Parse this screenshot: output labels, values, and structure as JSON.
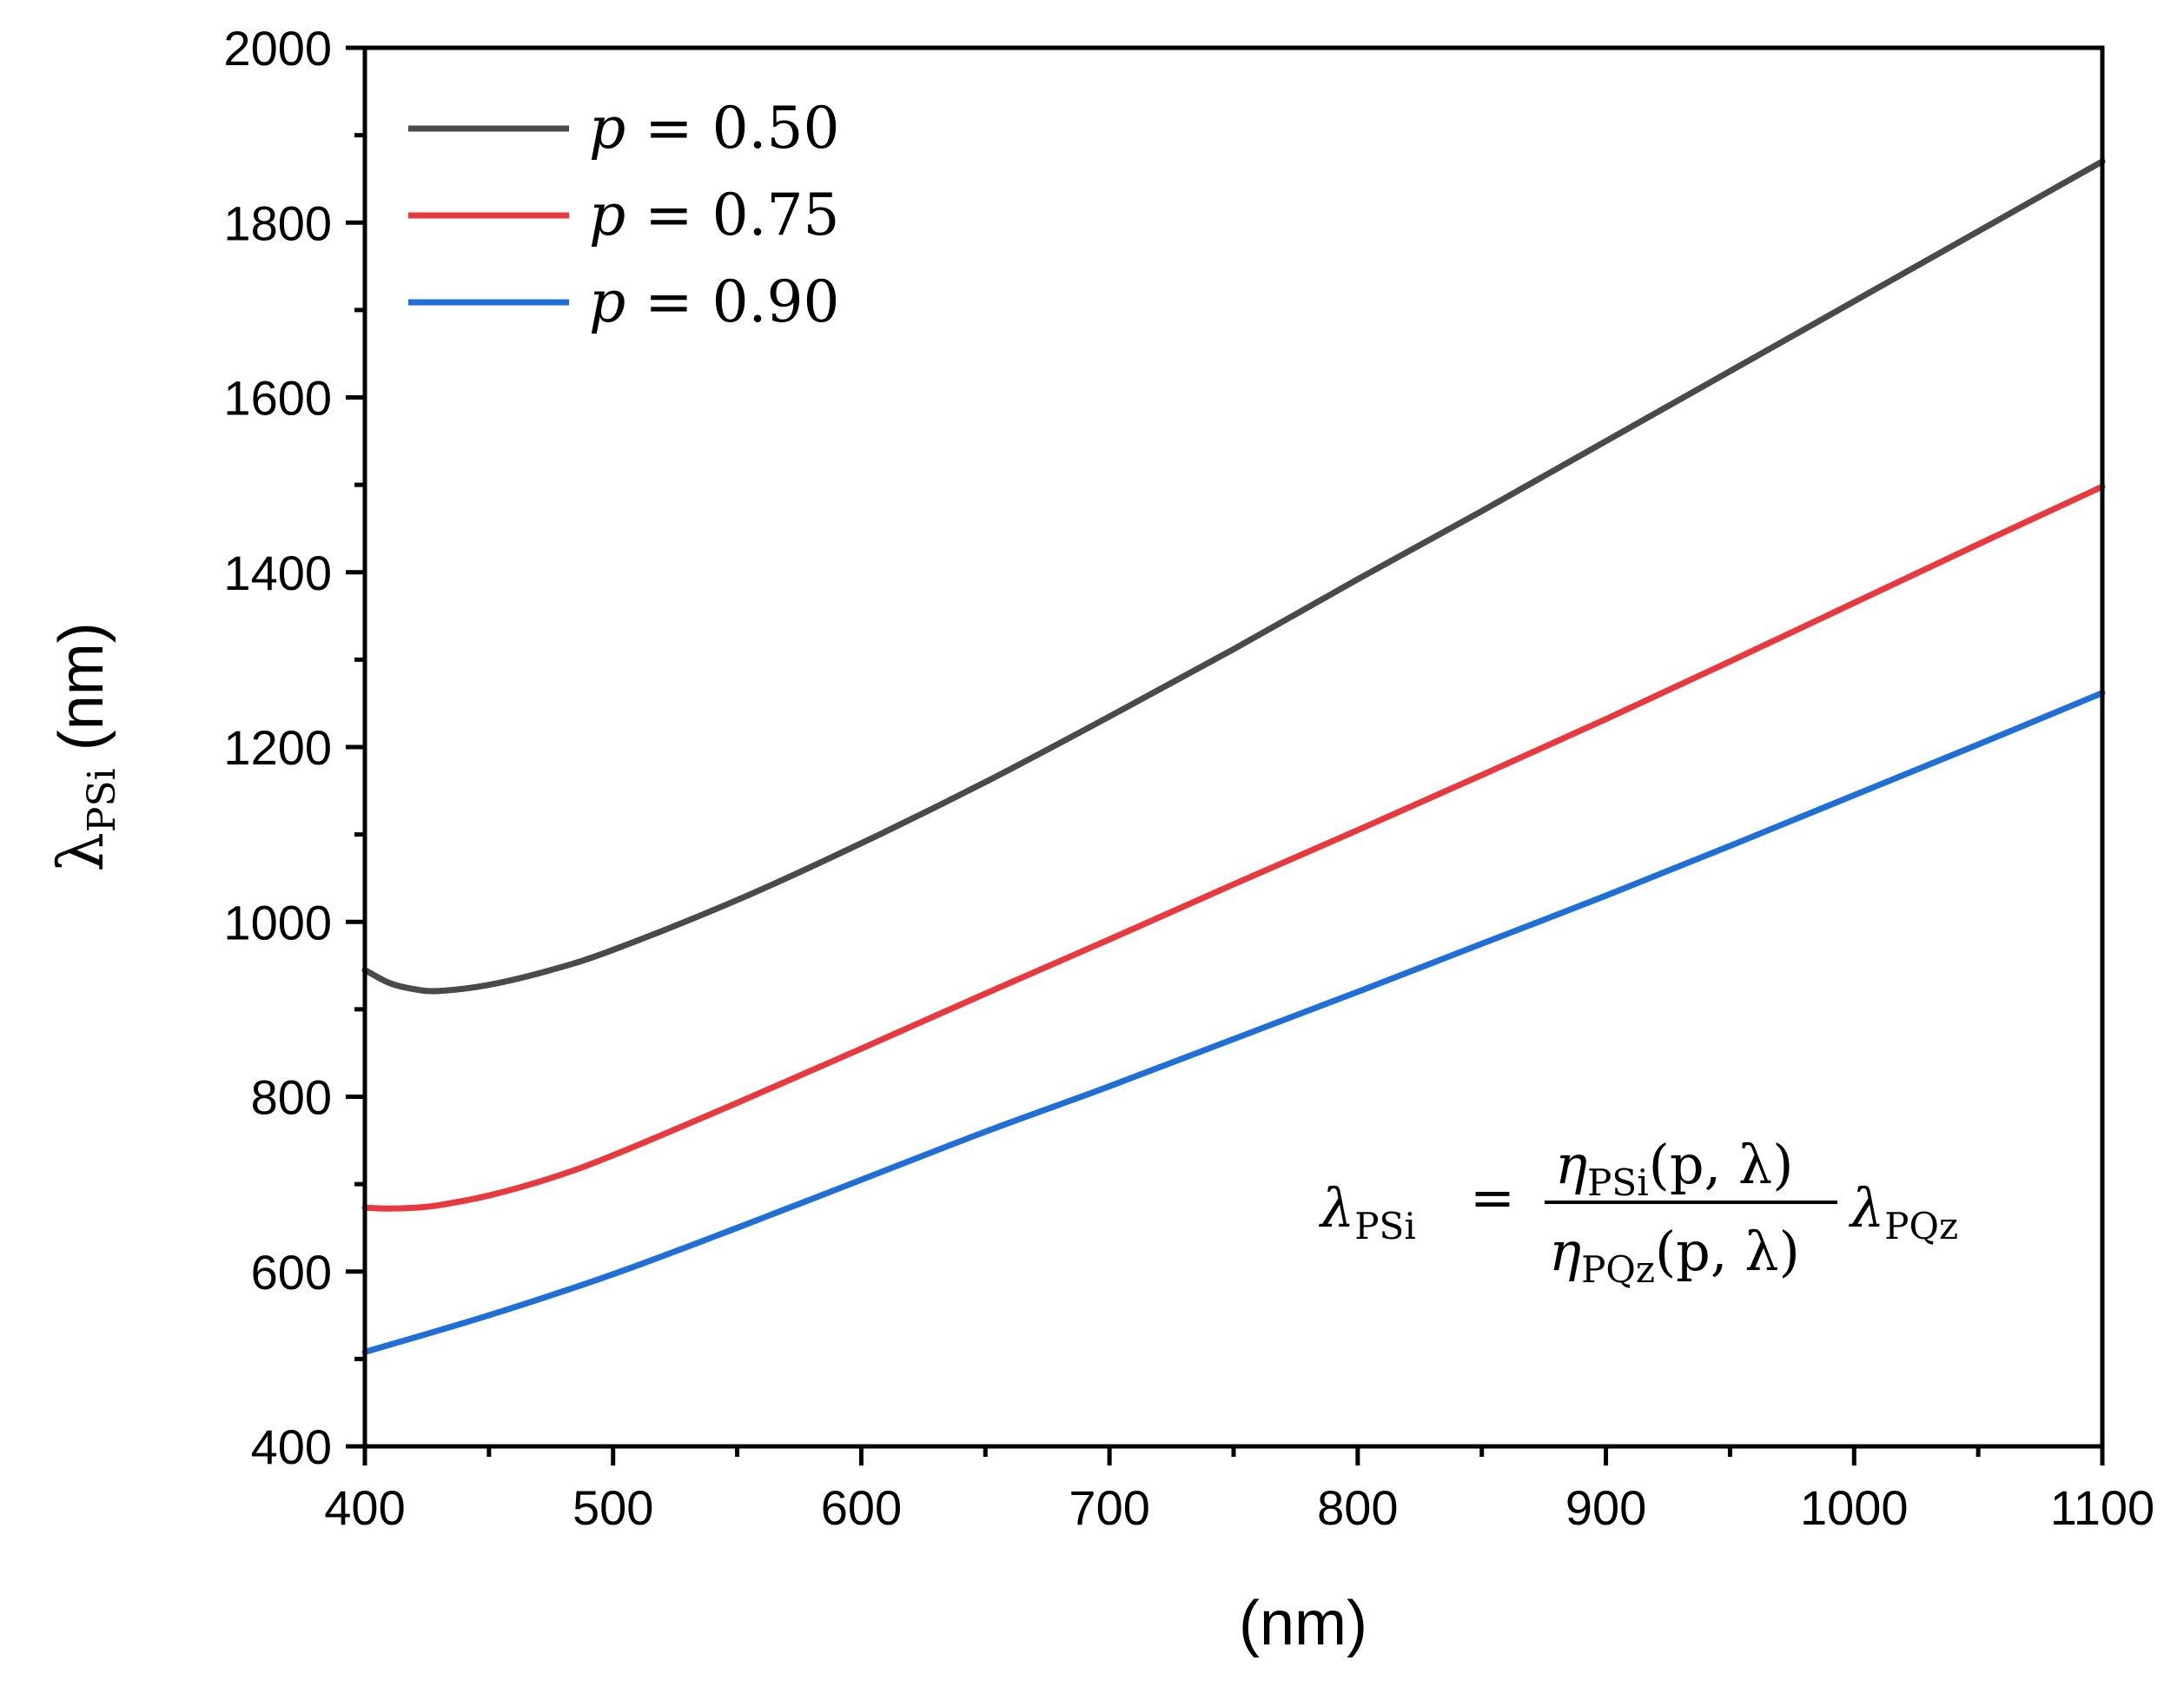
{
  "chart_data": {
    "type": "line",
    "title": "",
    "xlabel": "(nm)",
    "ylabel": {
      "symbol": "λ",
      "subscript": "PSi",
      "unit": "(nm)"
    },
    "xlim": [
      400,
      1100
    ],
    "ylim": [
      400,
      2000
    ],
    "xticks": [
      400,
      500,
      600,
      700,
      800,
      900,
      1000,
      1100
    ],
    "yticks": [
      400,
      600,
      800,
      1000,
      1200,
      1400,
      1600,
      1800,
      2000
    ],
    "grid": false,
    "legend_position": "top-left",
    "series": [
      {
        "name": "p = 0.50",
        "legend": {
          "var": "p",
          "eq": "=",
          "val": "0.50"
        },
        "color": "#4a4a4a",
        "x": [
          400,
          410,
          420,
          430,
          450,
          475,
          500,
          550,
          600,
          650,
          700,
          750,
          800,
          850,
          900,
          950,
          1000,
          1050,
          1100
        ],
        "y": [
          945,
          930,
          923,
          921,
          928,
          945,
          968,
          1025,
          1090,
          1160,
          1235,
          1312,
          1392,
          1470,
          1550,
          1630,
          1710,
          1790,
          1870
        ]
      },
      {
        "name": "p = 0.75",
        "legend": {
          "var": "p",
          "eq": "=",
          "val": "0.75"
        },
        "color": "#e8393f",
        "x": [
          400,
          410,
          420,
          430,
          450,
          475,
          500,
          550,
          600,
          650,
          700,
          750,
          800,
          850,
          900,
          950,
          1000,
          1050,
          1100
        ],
        "y": [
          673,
          672,
          673,
          676,
          687,
          707,
          733,
          793,
          855,
          918,
          980,
          1043,
          1105,
          1168,
          1232,
          1298,
          1365,
          1432,
          1498
        ]
      },
      {
        "name": "p = 0.90",
        "legend": {
          "var": "p",
          "eq": "=",
          "val": "0.90"
        },
        "color": "#1f6fd6",
        "x": [
          400,
          450,
          500,
          550,
          600,
          650,
          700,
          750,
          800,
          850,
          900,
          950,
          1000,
          1050,
          1100
        ],
        "y": [
          508,
          550,
          597,
          650,
          705,
          760,
          812,
          866,
          920,
          975,
          1030,
          1087,
          1145,
          1203,
          1262
        ]
      }
    ],
    "annotation": {
      "lhs_symbol": "λ",
      "lhs_sub": "PSi",
      "equals": "=",
      "num_symbol": "η",
      "num_sub": "PSi",
      "num_args": "(p, λ)",
      "den_symbol": "η",
      "den_sub": "PQz",
      "den_args": "(p, λ)",
      "rhs_symbol": "λ",
      "rhs_sub": "PQz"
    }
  }
}
